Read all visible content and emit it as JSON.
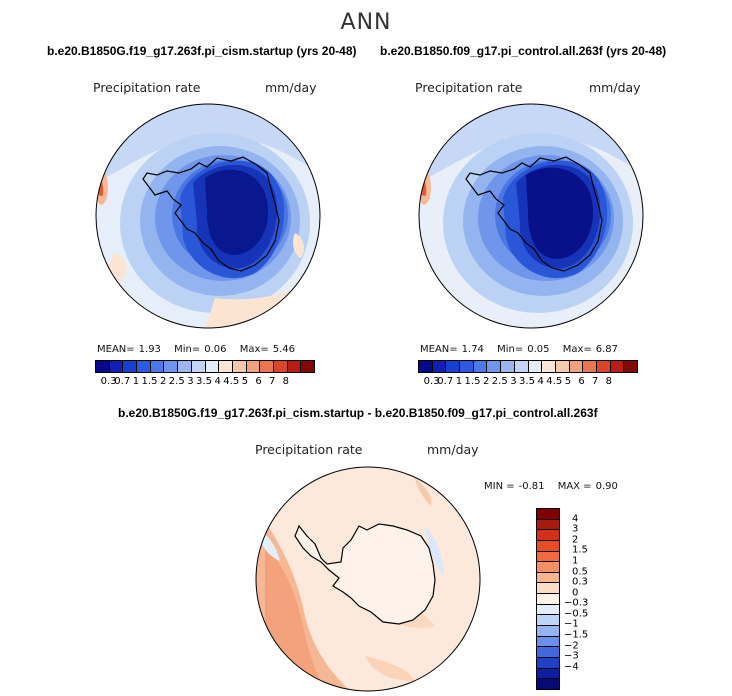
{
  "title": "ANN",
  "panel_top_left": {
    "case": "b.e20.B1850G.f19_g17.263f.pi_cism.startup (yrs 20-48)",
    "variable": "Precipitation rate",
    "units": "mm/day",
    "mean_label": "MEAN=",
    "mean": "1.93",
    "min_label": "Min=",
    "min": "0.06",
    "max_label": "Max=",
    "max": "5.46"
  },
  "panel_top_right": {
    "case": "b.e20.B1850.f09_g17.pi_control.all.263f (yrs 20-48)",
    "variable": "Precipitation rate",
    "units": "mm/day",
    "mean_label": "MEAN=",
    "mean": "1.74",
    "min_label": "Min=",
    "min": "0.05",
    "max_label": "Max=",
    "max": "6.87"
  },
  "panel_diff": {
    "case": "b.e20.B1850G.f19_g17.263f.pi_cism.startup - b.e20.B1850.f09_g17.pi_control.all.263f",
    "variable": "Precipitation rate",
    "units": "mm/day",
    "min_label": "MIN =",
    "min": "-0.81",
    "max_label": "MAX =",
    "max": "0.90"
  },
  "abs_colorbar": {
    "ticks": [
      "0.3",
      "0.7",
      "1",
      "1.5",
      "2",
      "2.5",
      "3",
      "3.5",
      "4",
      "4.5",
      "5",
      "6",
      "7",
      "8"
    ],
    "colors": [
      "#08088a",
      "#1020b0",
      "#1840d0",
      "#2a5be0",
      "#4a7ae8",
      "#6f96ee",
      "#9cb6f2",
      "#c4d4f6",
      "#e4ecf8",
      "#fbe6d6",
      "#f7c8aa",
      "#f2a27a",
      "#ea7650",
      "#d9462a",
      "#b81e14",
      "#7f0a06"
    ]
  },
  "diff_colorbar": {
    "ticks": [
      "4",
      "3",
      "2",
      "1.5",
      "1",
      "0.5",
      "0.3",
      "0",
      "-0.3",
      "-0.5",
      "-1",
      "-1.5",
      "-2",
      "-3",
      "-4"
    ],
    "colors": [
      "#800000",
      "#a81a0c",
      "#cf3218",
      "#e84c22",
      "#f26a3c",
      "#f69062",
      "#f9b68e",
      "#fcdcc2",
      "#fdf3e8",
      "#e3eefb",
      "#bcd4f6",
      "#94b6f0",
      "#6a90ea",
      "#4068de",
      "#1f40c4",
      "#0c1ea2",
      "#040a78"
    ]
  }
}
